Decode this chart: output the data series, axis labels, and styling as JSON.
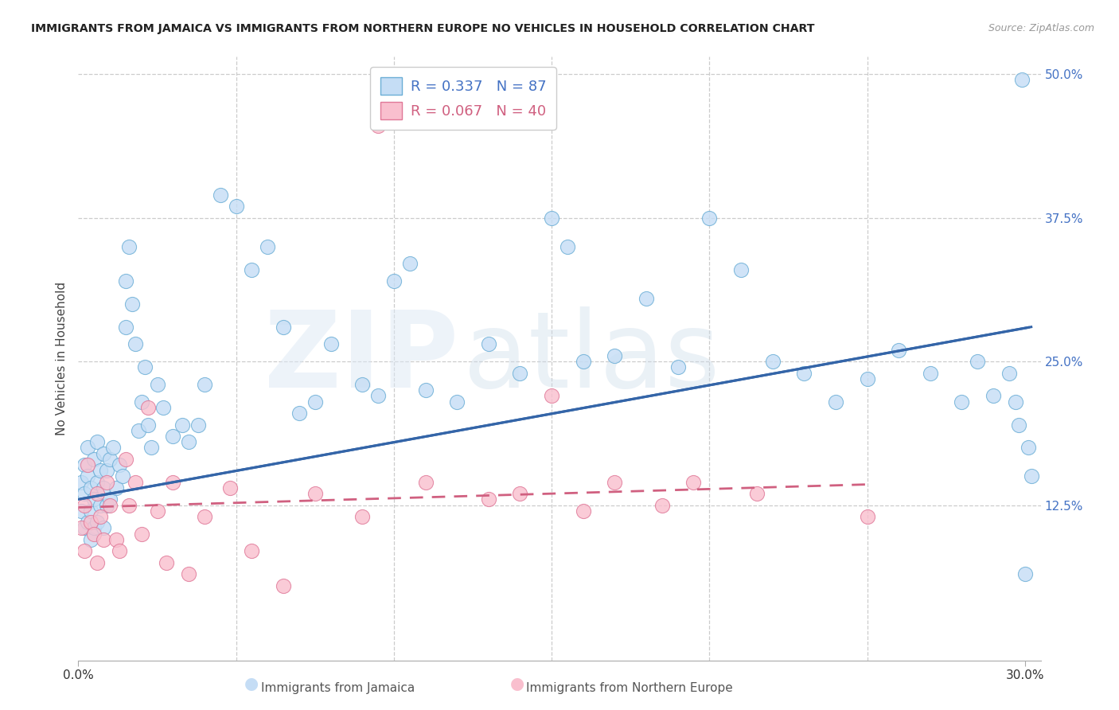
{
  "title": "IMMIGRANTS FROM JAMAICA VS IMMIGRANTS FROM NORTHERN EUROPE NO VEHICLES IN HOUSEHOLD CORRELATION CHART",
  "source": "Source: ZipAtlas.com",
  "xlabel_blue": "Immigrants from Jamaica",
  "xlabel_pink": "Immigrants from Northern Europe",
  "ylabel": "No Vehicles in Household",
  "xlim": [
    0.0,
    0.305
  ],
  "ylim": [
    -0.01,
    0.515
  ],
  "yticks_right": [
    0.125,
    0.25,
    0.375,
    0.5
  ],
  "ytick_labels_right": [
    "12.5%",
    "25.0%",
    "37.5%",
    "50.0%"
  ],
  "xtick_positions": [
    0.0,
    0.3
  ],
  "xtick_labels": [
    "0.0%",
    "30.0%"
  ],
  "legend_blue_R": "0.337",
  "legend_blue_N": "87",
  "legend_pink_R": "0.067",
  "legend_pink_N": "40",
  "blue_fill": "#c5ddf5",
  "blue_edge": "#6baed6",
  "pink_fill": "#f9bfce",
  "pink_edge": "#e07898",
  "line_blue_color": "#3465a8",
  "line_pink_color": "#d06080",
  "grid_color": "#cccccc",
  "title_color": "#222222",
  "source_color": "#999999",
  "ylabel_color": "#444444",
  "tick_label_blue": "#4472c4",
  "tick_label_dark": "#333333",
  "blue_line_start_y": 0.13,
  "blue_line_end_y": 0.28,
  "pink_line_start_y": 0.123,
  "pink_line_end_y": 0.143,
  "blue_x": [
    0.001,
    0.001,
    0.002,
    0.002,
    0.002,
    0.003,
    0.003,
    0.003,
    0.004,
    0.004,
    0.004,
    0.005,
    0.005,
    0.005,
    0.006,
    0.006,
    0.006,
    0.007,
    0.007,
    0.008,
    0.008,
    0.008,
    0.009,
    0.009,
    0.01,
    0.01,
    0.011,
    0.012,
    0.013,
    0.014,
    0.015,
    0.015,
    0.016,
    0.017,
    0.018,
    0.019,
    0.02,
    0.021,
    0.022,
    0.023,
    0.025,
    0.027,
    0.03,
    0.033,
    0.035,
    0.038,
    0.04,
    0.045,
    0.05,
    0.055,
    0.06,
    0.065,
    0.07,
    0.075,
    0.08,
    0.09,
    0.095,
    0.1,
    0.105,
    0.11,
    0.12,
    0.13,
    0.14,
    0.15,
    0.155,
    0.16,
    0.17,
    0.18,
    0.19,
    0.2,
    0.21,
    0.22,
    0.23,
    0.24,
    0.25,
    0.26,
    0.27,
    0.28,
    0.285,
    0.29,
    0.295,
    0.297,
    0.298,
    0.299,
    0.3,
    0.301,
    0.302
  ],
  "blue_y": [
    0.145,
    0.12,
    0.16,
    0.135,
    0.105,
    0.175,
    0.15,
    0.11,
    0.14,
    0.12,
    0.095,
    0.165,
    0.13,
    0.105,
    0.18,
    0.145,
    0.11,
    0.155,
    0.125,
    0.17,
    0.14,
    0.105,
    0.155,
    0.125,
    0.165,
    0.13,
    0.175,
    0.14,
    0.16,
    0.15,
    0.32,
    0.28,
    0.35,
    0.3,
    0.265,
    0.19,
    0.215,
    0.245,
    0.195,
    0.175,
    0.23,
    0.21,
    0.185,
    0.195,
    0.18,
    0.195,
    0.23,
    0.395,
    0.385,
    0.33,
    0.35,
    0.28,
    0.205,
    0.215,
    0.265,
    0.23,
    0.22,
    0.32,
    0.335,
    0.225,
    0.215,
    0.265,
    0.24,
    0.375,
    0.35,
    0.25,
    0.255,
    0.305,
    0.245,
    0.375,
    0.33,
    0.25,
    0.24,
    0.215,
    0.235,
    0.26,
    0.24,
    0.215,
    0.25,
    0.22,
    0.24,
    0.215,
    0.195,
    0.495,
    0.065,
    0.175,
    0.15
  ],
  "pink_x": [
    0.001,
    0.002,
    0.002,
    0.003,
    0.004,
    0.005,
    0.006,
    0.006,
    0.007,
    0.008,
    0.009,
    0.01,
    0.012,
    0.013,
    0.015,
    0.016,
    0.018,
    0.02,
    0.022,
    0.025,
    0.028,
    0.03,
    0.035,
    0.04,
    0.048,
    0.055,
    0.065,
    0.075,
    0.09,
    0.095,
    0.11,
    0.13,
    0.14,
    0.15,
    0.16,
    0.17,
    0.185,
    0.195,
    0.215,
    0.25
  ],
  "pink_y": [
    0.105,
    0.125,
    0.085,
    0.16,
    0.11,
    0.1,
    0.135,
    0.075,
    0.115,
    0.095,
    0.145,
    0.125,
    0.095,
    0.085,
    0.165,
    0.125,
    0.145,
    0.1,
    0.21,
    0.12,
    0.075,
    0.145,
    0.065,
    0.115,
    0.14,
    0.085,
    0.055,
    0.135,
    0.115,
    0.455,
    0.145,
    0.13,
    0.135,
    0.22,
    0.12,
    0.145,
    0.125,
    0.145,
    0.135,
    0.115
  ]
}
